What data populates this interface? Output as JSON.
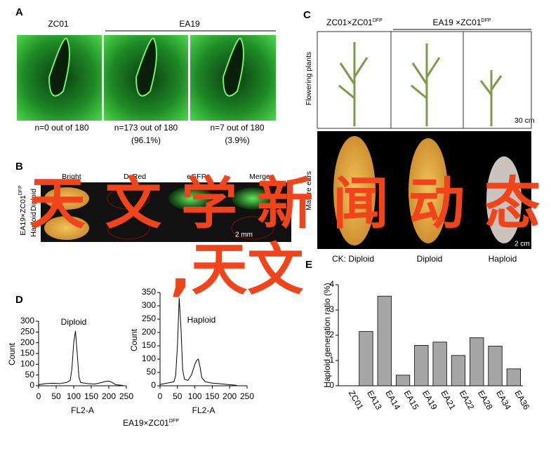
{
  "panel_a": {
    "label": "A",
    "header_left": "ZC01",
    "header_right": "EA19",
    "captions": [
      "n=0 out of 180",
      "n=173 out of 180",
      "(96.1%)",
      "n=7 out of 180",
      "(3.9%)"
    ]
  },
  "panel_b": {
    "label": "B",
    "columns": [
      "Bright",
      "DsRed",
      "eGFP",
      "Merge"
    ],
    "rows": [
      "Diploid",
      "Haploid"
    ],
    "cross": {
      "text": "EA19×ZC01",
      "sup": "DFP"
    },
    "scale": "2 mm"
  },
  "panel_c": {
    "label": "C",
    "header_left": {
      "text": "ZC01×ZC01",
      "sup": "DFP"
    },
    "header_right": {
      "text": "EA19 ×ZC01",
      "sup": "DFP"
    },
    "row_labels": [
      "Flowering plants",
      "Mature ears"
    ],
    "scale_top": "30 cm",
    "scale_bottom": "2 cm",
    "captions": [
      "CK: Diploid",
      "Diploid",
      "Haploid"
    ]
  },
  "panel_d": {
    "label": "D",
    "cross": {
      "text": "EA19×ZC01",
      "sup": "DFP"
    }
  },
  "panel_e": {
    "label": "E"
  },
  "overlay": [
    "天文学新闻动态",
    ",天文"
  ],
  "chart_data": [
    {
      "type": "line",
      "title": "Diploid",
      "xlabel": "FL2-A",
      "ylabel": "Count",
      "color": "#000000",
      "x": [
        0,
        20,
        40,
        60,
        80,
        90,
        95,
        100,
        105,
        110,
        115,
        120,
        140,
        160,
        180,
        190,
        200,
        210,
        220,
        240
      ],
      "values": [
        5,
        10,
        12,
        10,
        15,
        25,
        80,
        200,
        255,
        150,
        40,
        15,
        10,
        8,
        15,
        20,
        22,
        15,
        5,
        2
      ],
      "xlim": [
        0,
        250
      ],
      "xticks": [
        0,
        50,
        100,
        150,
        200,
        250
      ],
      "ylim": [
        0,
        300
      ],
      "yticks": [
        0,
        50,
        100,
        150,
        200,
        250,
        300
      ]
    },
    {
      "type": "line",
      "title": "Haploid",
      "xlabel": "FL2-A",
      "ylabel": "Count",
      "color": "#000000",
      "x": [
        0,
        20,
        40,
        45,
        50,
        55,
        60,
        65,
        70,
        80,
        90,
        100,
        105,
        110,
        115,
        120,
        130,
        150,
        170,
        200,
        220
      ],
      "values": [
        5,
        10,
        15,
        40,
        150,
        330,
        220,
        60,
        25,
        20,
        40,
        80,
        95,
        100,
        70,
        30,
        15,
        10,
        8,
        4,
        2
      ],
      "xlim": [
        0,
        250
      ],
      "xticks": [
        0,
        50,
        100,
        150,
        200,
        250
      ],
      "ylim": [
        0,
        350
      ],
      "yticks": [
        0,
        50,
        100,
        150,
        200,
        250,
        300,
        350
      ]
    },
    {
      "type": "bar",
      "ylabel": "Haploid generation ratio (%)",
      "color": "#a6a6a6",
      "categories": [
        "ZC01",
        "EA13",
        "EA14",
        "EA15",
        "EA19",
        "EA21",
        "EA22",
        "EA28",
        "EA34",
        "EA36"
      ],
      "values": [
        0,
        2.15,
        3.55,
        0.42,
        1.6,
        1.73,
        1.2,
        1.9,
        1.57,
        0.67
      ],
      "ylim": [
        0,
        4
      ],
      "yticks": [
        0,
        1,
        2,
        3,
        4
      ]
    }
  ]
}
